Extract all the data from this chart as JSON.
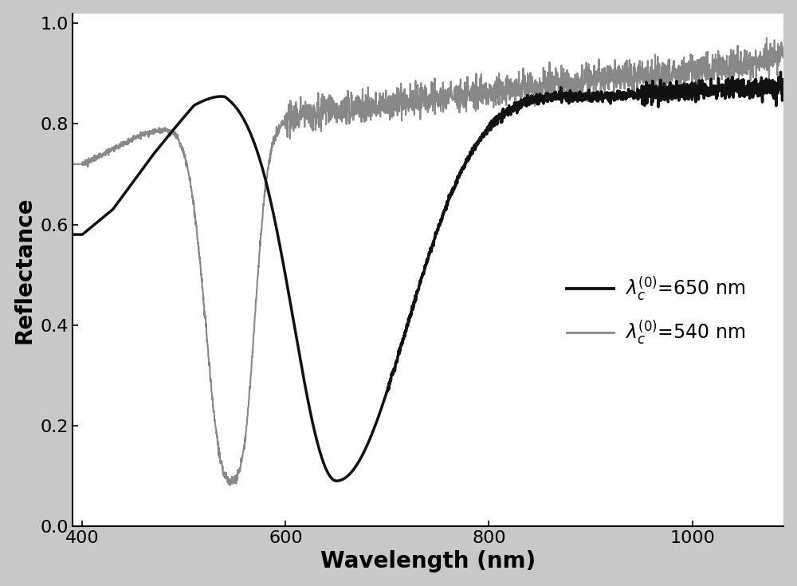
{
  "xlabel": "Wavelength (nm)",
  "ylabel": "Reflectance",
  "xlim": [
    390,
    1090
  ],
  "ylim": [
    0,
    1.02
  ],
  "xticks": [
    400,
    600,
    800,
    1000
  ],
  "yticks": [
    0,
    0.2,
    0.4,
    0.6,
    0.8,
    1
  ],
  "curve1_color": "#111111",
  "curve2_color": "#888888",
  "curve1_lw": 2.5,
  "curve2_lw": 1.5,
  "bg_color": "#ffffff",
  "fig_bg": "#c8c8c8"
}
